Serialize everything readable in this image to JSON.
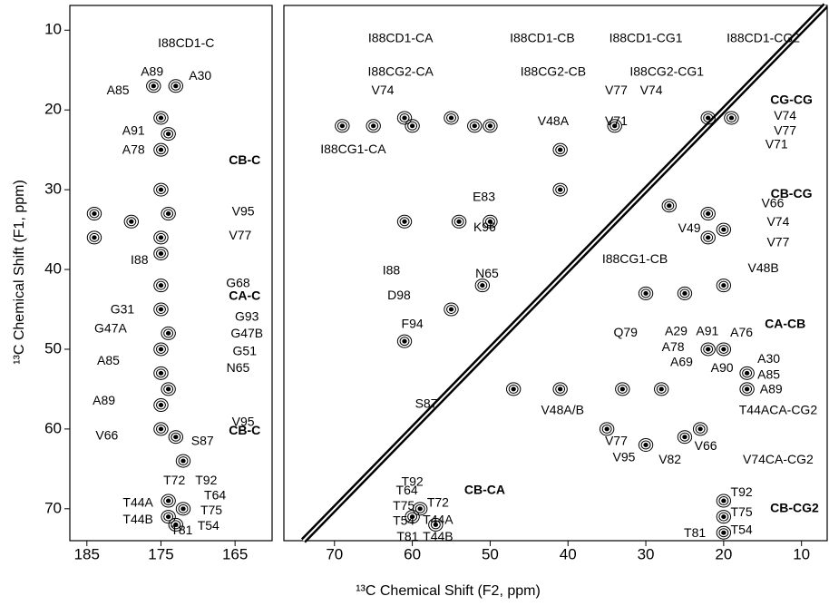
{
  "chart_data": [
    {
      "type": "contour",
      "ylabel": "¹³C Chemical Shift (F1, ppm)",
      "xlim": [
        187.3,
        160
      ],
      "xticks": [
        185,
        175,
        165
      ],
      "ylim": [
        6.9,
        74
      ],
      "yticks": [
        10,
        20,
        30,
        40,
        50,
        60,
        70
      ],
      "color": "#000000",
      "peaks": {
        "x": [
          176,
          173,
          175,
          174,
          175,
          175,
          174,
          175,
          184,
          184,
          179,
          175,
          175,
          175,
          174,
          175,
          175,
          174,
          175,
          175,
          173,
          172,
          174,
          174,
          173,
          172
        ],
        "y": [
          17,
          17,
          21,
          23,
          25,
          30,
          33,
          36,
          33,
          36,
          34,
          38,
          42,
          45,
          48,
          50,
          53,
          55,
          57,
          60,
          61,
          64,
          69,
          71,
          72,
          70
        ]
      },
      "annotations": [
        {
          "text": "I88CD1-C",
          "x": 171.6,
          "y": 11.7
        },
        {
          "text": "A89",
          "x": 176.2,
          "y": 15.3
        },
        {
          "text": "A30",
          "x": 169.7,
          "y": 15.8
        },
        {
          "text": "A85",
          "x": 180.8,
          "y": 17.6
        },
        {
          "text": "A91",
          "x": 178.7,
          "y": 22.7
        },
        {
          "text": "A78",
          "x": 178.7,
          "y": 25.1
        },
        {
          "text": "CB-C",
          "x": 163.7,
          "y": 26.4,
          "bold": true
        },
        {
          "text": "V95",
          "x": 163.9,
          "y": 32.8
        },
        {
          "text": "V77",
          "x": 164.3,
          "y": 35.8
        },
        {
          "text": "I88",
          "x": 177.9,
          "y": 38.9
        },
        {
          "text": "G68",
          "x": 164.6,
          "y": 41.8
        },
        {
          "text": "CA-C",
          "x": 163.7,
          "y": 43.4,
          "bold": true
        },
        {
          "text": "G31",
          "x": 180.2,
          "y": 45.1
        },
        {
          "text": "G93",
          "x": 163.4,
          "y": 46.0
        },
        {
          "text": "G47A",
          "x": 181.8,
          "y": 47.5
        },
        {
          "text": "G47B",
          "x": 163.4,
          "y": 48.1
        },
        {
          "text": "G51",
          "x": 163.7,
          "y": 50.3
        },
        {
          "text": "A85",
          "x": 182.1,
          "y": 51.5
        },
        {
          "text": "N65",
          "x": 164.6,
          "y": 52.4
        },
        {
          "text": "A89",
          "x": 182.7,
          "y": 56.5
        },
        {
          "text": "V95",
          "x": 163.9,
          "y": 59.2
        },
        {
          "text": "V66",
          "x": 182.3,
          "y": 60.9
        },
        {
          "text": "CB-C",
          "x": 163.7,
          "y": 60.3,
          "bold": true
        },
        {
          "text": "S87",
          "x": 169.4,
          "y": 61.6
        },
        {
          "text": "T72",
          "x": 173.2,
          "y": 66.5
        },
        {
          "text": "T92",
          "x": 168.9,
          "y": 66.5
        },
        {
          "text": "T64",
          "x": 167.7,
          "y": 68.4
        },
        {
          "text": "T44A",
          "x": 178.1,
          "y": 69.3
        },
        {
          "text": "T75",
          "x": 168.2,
          "y": 70.3
        },
        {
          "text": "T44B",
          "x": 178.1,
          "y": 71.4
        },
        {
          "text": "T54",
          "x": 168.6,
          "y": 72.2
        },
        {
          "text": "T81",
          "x": 172.2,
          "y": 72.8
        }
      ]
    },
    {
      "type": "contour",
      "xlabel": "¹³C Chemical Shift (F2, ppm)",
      "xlim": [
        76.5,
        6.7
      ],
      "xticks": [
        70,
        60,
        50,
        40,
        30,
        20,
        10
      ],
      "ylim": [
        6.9,
        74
      ],
      "color": "#000000",
      "diagonal": true,
      "peaks": {
        "x": [
          69,
          65,
          61,
          60,
          55,
          52,
          50,
          34,
          22,
          19,
          41,
          41,
          54,
          50,
          61,
          27,
          22,
          20,
          22,
          30,
          25,
          20,
          47,
          41,
          33,
          28,
          23,
          35,
          30,
          25,
          22,
          20,
          17,
          17,
          59,
          60,
          57,
          20,
          20,
          20,
          61,
          55,
          51
        ],
        "y": [
          22,
          22,
          21,
          22,
          21,
          22,
          22,
          22,
          21,
          21,
          25,
          30,
          34,
          34,
          34,
          32,
          33,
          35,
          36,
          43,
          43,
          42,
          55,
          55,
          55,
          55,
          60,
          60,
          62,
          61,
          50,
          50,
          53,
          55,
          70,
          71,
          72,
          69,
          71,
          73,
          49,
          45,
          42
        ]
      },
      "annotations": [
        {
          "text": "I88CD1-CA",
          "x": 61.5,
          "y": 11.1
        },
        {
          "text": "I88CD1-CB",
          "x": 43.3,
          "y": 11.1
        },
        {
          "text": "I88CD1-CG1",
          "x": 30.0,
          "y": 11.1
        },
        {
          "text": "I88CD1-CG2",
          "x": 14.9,
          "y": 11.1
        },
        {
          "text": "I88CG2-CA",
          "x": 61.5,
          "y": 15.3
        },
        {
          "text": "I88CG2-CB",
          "x": 41.9,
          "y": 15.3
        },
        {
          "text": "I88CG2-CG1",
          "x": 27.3,
          "y": 15.3
        },
        {
          "text": "V74",
          "x": 63.8,
          "y": 17.6
        },
        {
          "text": "V77",
          "x": 33.8,
          "y": 17.6
        },
        {
          "text": "V74",
          "x": 29.3,
          "y": 17.6
        },
        {
          "text": "CG-CG",
          "x": 11.3,
          "y": 18.8,
          "bold": true
        },
        {
          "text": "V48A",
          "x": 41.9,
          "y": 21.5
        },
        {
          "text": "V71",
          "x": 33.8,
          "y": 21.5
        },
        {
          "text": "V74",
          "x": 12.1,
          "y": 20.8
        },
        {
          "text": "V77",
          "x": 12.1,
          "y": 22.7
        },
        {
          "text": "V71",
          "x": 13.2,
          "y": 24.4
        },
        {
          "text": "I88CG1-CA",
          "x": 67.6,
          "y": 25.0
        },
        {
          "text": "CB-CG",
          "x": 11.3,
          "y": 30.6,
          "bold": true
        },
        {
          "text": "E83",
          "x": 50.8,
          "y": 31.0
        },
        {
          "text": "K96",
          "x": 50.7,
          "y": 34.8
        },
        {
          "text": "V66",
          "x": 13.7,
          "y": 31.8
        },
        {
          "text": "V74",
          "x": 13.0,
          "y": 34.1
        },
        {
          "text": "V49",
          "x": 24.4,
          "y": 34.9
        },
        {
          "text": "V77",
          "x": 13.0,
          "y": 36.7
        },
        {
          "text": "V48B",
          "x": 14.9,
          "y": 39.9
        },
        {
          "text": "I88CG1-CB",
          "x": 31.4,
          "y": 38.8
        },
        {
          "text": "I88",
          "x": 62.7,
          "y": 40.2
        },
        {
          "text": "N65",
          "x": 50.4,
          "y": 40.6
        },
        {
          "text": "D98",
          "x": 61.7,
          "y": 43.3
        },
        {
          "text": "F94",
          "x": 60.0,
          "y": 46.9
        },
        {
          "text": "CA-CB",
          "x": 12.1,
          "y": 46.9,
          "bold": true
        },
        {
          "text": "A29",
          "x": 26.1,
          "y": 47.8
        },
        {
          "text": "A91",
          "x": 22.1,
          "y": 47.8
        },
        {
          "text": "A76",
          "x": 17.7,
          "y": 48.0
        },
        {
          "text": "A78",
          "x": 26.5,
          "y": 49.8
        },
        {
          "text": "Q79",
          "x": 32.6,
          "y": 48.0
        },
        {
          "text": "A69",
          "x": 25.4,
          "y": 51.7
        },
        {
          "text": "A90",
          "x": 20.2,
          "y": 52.4
        },
        {
          "text": "A30",
          "x": 14.2,
          "y": 51.3
        },
        {
          "text": "A85",
          "x": 14.2,
          "y": 53.3
        },
        {
          "text": "A89",
          "x": 13.9,
          "y": 55.1
        },
        {
          "text": "S87",
          "x": 58.2,
          "y": 56.9
        },
        {
          "text": "V48A/B",
          "x": 40.7,
          "y": 57.7
        },
        {
          "text": "T44ACA-CG2",
          "x": 13.0,
          "y": 57.7
        },
        {
          "text": "V77",
          "x": 33.8,
          "y": 61.6
        },
        {
          "text": "V66",
          "x": 22.3,
          "y": 62.2
        },
        {
          "text": "V95",
          "x": 32.8,
          "y": 63.6
        },
        {
          "text": "V82",
          "x": 26.9,
          "y": 63.9
        },
        {
          "text": "V74CA-CG2",
          "x": 13.0,
          "y": 63.9
        },
        {
          "text": "T92",
          "x": 60.0,
          "y": 66.7
        },
        {
          "text": "T64",
          "x": 60.7,
          "y": 67.8
        },
        {
          "text": "CB-CA",
          "x": 50.7,
          "y": 67.7,
          "bold": true
        },
        {
          "text": "T72",
          "x": 56.7,
          "y": 69.3
        },
        {
          "text": "T75",
          "x": 61.1,
          "y": 69.7
        },
        {
          "text": "T54",
          "x": 61.1,
          "y": 71.6
        },
        {
          "text": "T44A",
          "x": 56.7,
          "y": 71.5
        },
        {
          "text": "T81",
          "x": 60.6,
          "y": 73.6
        },
        {
          "text": "T44B",
          "x": 56.7,
          "y": 73.6
        },
        {
          "text": "T92",
          "x": 17.7,
          "y": 68.0
        },
        {
          "text": "T75",
          "x": 17.7,
          "y": 70.5
        },
        {
          "text": "CB-CG2",
          "x": 10.9,
          "y": 70.0,
          "bold": true
        },
        {
          "text": "T54",
          "x": 17.7,
          "y": 72.7
        },
        {
          "text": "T81",
          "x": 23.7,
          "y": 73.1
        }
      ]
    }
  ]
}
